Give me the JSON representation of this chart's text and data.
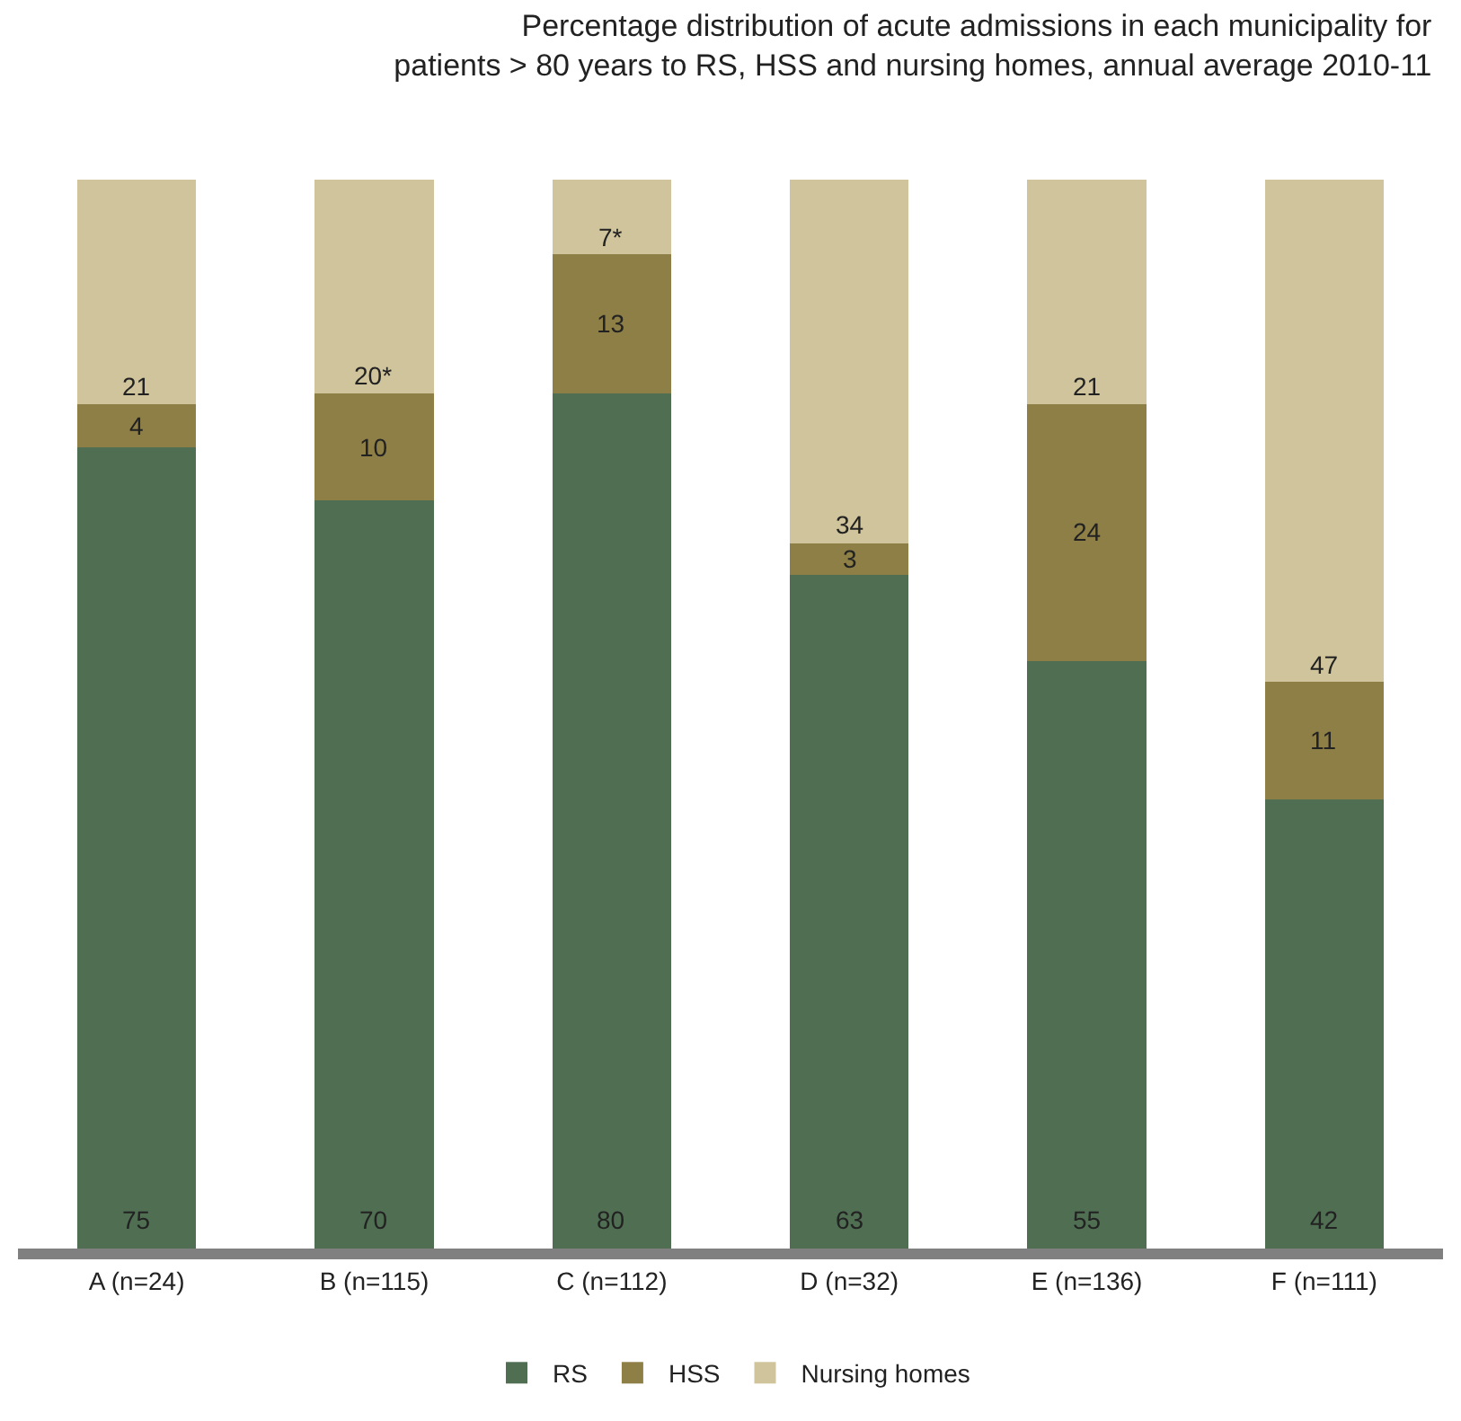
{
  "chart_data": {
    "type": "bar",
    "stacked": true,
    "title": "Percentage distribution of acute admissions in each municipality for patients > 80 years to RS, HSS and nursing homes, annual average 2010-11",
    "categories": [
      "A (n=24)",
      "B (n=115)",
      "C (n=112)",
      "D (n=32)",
      "E (n=136)",
      "F (n=111)"
    ],
    "ylim": [
      0,
      100
    ],
    "tick_labels": "x",
    "legend": "bottom",
    "series": [
      {
        "name": "RS",
        "color": "#4f6e52",
        "values": [
          75,
          70,
          80,
          63,
          55,
          42
        ],
        "value_labels": [
          "75",
          "70",
          "80",
          "63",
          "55",
          "42"
        ]
      },
      {
        "name": "HSS",
        "color": "#8e7f47",
        "values": [
          4,
          10,
          13,
          3,
          24,
          11
        ],
        "value_labels": [
          "4",
          "10",
          "13",
          "3",
          "24",
          "11"
        ]
      },
      {
        "name": "Nursing homes",
        "color": "#cfc49b",
        "values": [
          21,
          20,
          7,
          34,
          21,
          47
        ],
        "value_labels": [
          "21",
          "20*",
          "7*",
          "34",
          "21",
          "47"
        ]
      }
    ]
  }
}
